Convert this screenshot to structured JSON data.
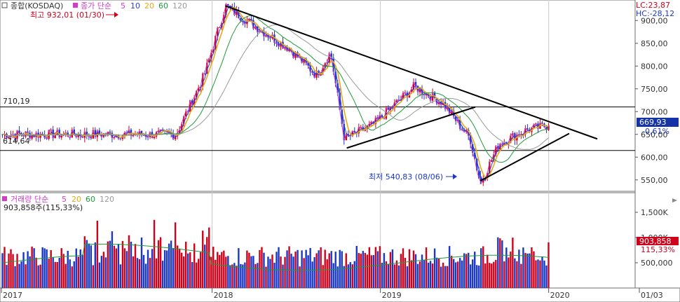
{
  "window": {
    "legend_main": {
      "title": "종합(KOSDAQ)",
      "ma_label": "종가 단순",
      "periods": [
        "5",
        "10",
        "20",
        "60",
        "120"
      ]
    },
    "legend_volume": {
      "title": "거래량 단순",
      "periods": [
        "5",
        "20",
        "60",
        "120"
      ],
      "current_volume": "903,858주(115,33%)"
    },
    "top_right": {
      "lc": "LC:23,87",
      "hc": "HC:-28,12"
    },
    "last_price_box": "669,93",
    "last_change": "-0,61%",
    "volume_box": "903,858",
    "volume_change": "115,33%",
    "annotations": {
      "high": "최고 932,01 (01/30)",
      "low": "최저 540,83 (08/06)",
      "line_710": "710,19",
      "line_614": "614,64"
    }
  },
  "colors": {
    "price_up": "#d0021b",
    "price_down": "#1a38c8",
    "ma5": "#d13cc8",
    "ma10": "#2b3ed8",
    "ma20": "#e6a817",
    "ma60": "#1e9a3a",
    "ma120": "#9a9a9a",
    "last_box": "#1533a6",
    "volume_box": "#d0021b"
  },
  "chart_data": [
    {
      "type": "candlestick",
      "title": "종합(KOSDAQ)",
      "y_ticks": [
        "900,00",
        "850,00",
        "800,00",
        "750,00",
        "700,00",
        "650,00",
        "600,00",
        "550,00"
      ],
      "ylim": [
        525,
        945
      ],
      "x_ticks": [
        "2017",
        "2018",
        "2019",
        "2020",
        "01/03"
      ],
      "key_points": [
        {
          "date": "2017-10",
          "close": 650
        },
        {
          "date": "2017-12",
          "close": 780
        },
        {
          "date": "2018-01-30",
          "close": 932.01
        },
        {
          "date": "2018-04",
          "close": 880
        },
        {
          "date": "2018-06",
          "close": 840
        },
        {
          "date": "2018-08",
          "close": 780
        },
        {
          "date": "2018-09",
          "close": 830
        },
        {
          "date": "2018-10",
          "close": 640
        },
        {
          "date": "2018-12",
          "close": 670
        },
        {
          "date": "2019-03",
          "close": 755
        },
        {
          "date": "2019-05",
          "close": 720
        },
        {
          "date": "2019-07",
          "close": 640
        },
        {
          "date": "2019-08-06",
          "close": 540.83
        },
        {
          "date": "2019-09",
          "close": 630
        },
        {
          "date": "2019-11",
          "close": 660
        },
        {
          "date": "2020-01-03",
          "close": 669.93
        }
      ],
      "horizontal_lines": [
        710.19,
        614.64
      ],
      "high": {
        "value": 932.01,
        "date": "01/30"
      },
      "low": {
        "value": 540.83,
        "date": "08/06"
      },
      "last": 669.93,
      "change_percent": -0.61
    },
    {
      "type": "bar",
      "title": "거래량",
      "y_ticks": [
        "1,500K",
        "1,000K",
        "500,000"
      ],
      "ylim": [
        0,
        1750000
      ],
      "last": 903858,
      "ratio_percent": 115.33
    }
  ]
}
